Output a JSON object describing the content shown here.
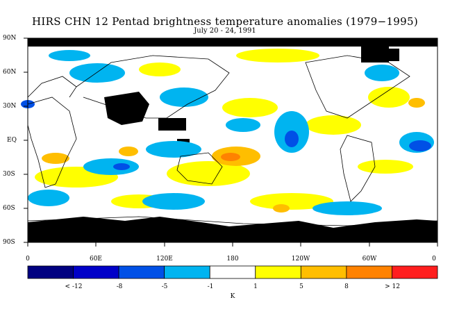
{
  "title": "HIRS CHN 12 Pentad brightness temperature anomalies (1979−1995)",
  "subtitle": "July 20 - 24, 1991",
  "lat_labels": [
    "90N",
    "60N",
    "30N",
    "EQ",
    "30S",
    "60S",
    "90S"
  ],
  "lon_labels": [
    "0",
    "60E",
    "120E",
    "180",
    "120W",
    "60W",
    "0"
  ],
  "colorbar": {
    "unit": "K",
    "labels": [
      "< -12",
      "-8",
      "-5",
      "-1",
      "1",
      "5",
      "8",
      "> 12"
    ],
    "colors": [
      "#000080",
      "#0000c8",
      "#0050e6",
      "#00b4f0",
      "#ffffff",
      "#ffff00",
      "#ffbe00",
      "#ff8200",
      "#ff1e1e"
    ]
  },
  "colors": {
    "land_missing": "#000000",
    "coastline": "#000000"
  }
}
